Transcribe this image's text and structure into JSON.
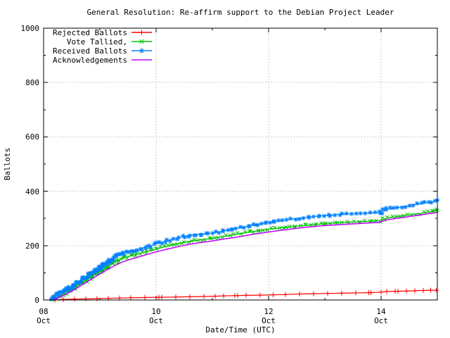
{
  "title": "General Resolution: Re-affirm support to the Debian Project Leader",
  "colors": {
    "background": "#ffffff",
    "axis": "#000000",
    "grid": "#a0a0a0",
    "rejected": "#ff0000",
    "tallied": "#00c000",
    "received": "#0080ff",
    "acknowledgements": "#c000ff"
  },
  "chart_data": {
    "type": "line",
    "title": "General Resolution: Re-affirm support to the Debian Project Leader",
    "xlabel": "Date/Time (UTC)",
    "ylabel": "Ballots",
    "ylim": [
      0,
      1000
    ],
    "x_unit": "days since 08 Oct 00:00 UTC",
    "xlim": [
      0,
      7
    ],
    "grid": true,
    "legend_position": "top-left-inside",
    "x_ticks": [
      {
        "pos": 0,
        "day": "08",
        "month": "Oct"
      },
      {
        "pos": 2,
        "day": "10",
        "month": "Oct"
      },
      {
        "pos": 4,
        "day": "12",
        "month": "Oct"
      },
      {
        "pos": 6,
        "day": "14",
        "month": "Oct"
      }
    ],
    "x_minor_ticks": [
      1,
      3,
      5,
      7
    ],
    "y_ticks": [
      {
        "value": 0,
        "label": "0"
      },
      {
        "value": 200,
        "label": "200"
      },
      {
        "value": 400,
        "label": "400"
      },
      {
        "value": 600,
        "label": "600"
      },
      {
        "value": 800,
        "label": "800"
      },
      {
        "value": 1000,
        "label": "1000"
      }
    ],
    "y_minor_ticks": [
      100,
      300,
      500,
      700,
      900
    ],
    "series": [
      {
        "name": "Rejected Ballots",
        "color": "#ff0000",
        "marker": "plus",
        "style": "linespoints",
        "final_value": 36,
        "points": [
          [
            0.2,
            0
          ],
          [
            0.35,
            2
          ],
          [
            0.55,
            3
          ],
          [
            0.75,
            4
          ],
          [
            0.95,
            5
          ],
          [
            1.15,
            6
          ],
          [
            1.35,
            7
          ],
          [
            1.55,
            8
          ],
          [
            1.8,
            9
          ],
          [
            2.05,
            10
          ],
          [
            2.1,
            10
          ],
          [
            2.35,
            11
          ],
          [
            2.6,
            12
          ],
          [
            2.85,
            13
          ],
          [
            3.05,
            14
          ],
          [
            3.2,
            15
          ],
          [
            3.4,
            16
          ],
          [
            3.45,
            16
          ],
          [
            3.6,
            17
          ],
          [
            3.85,
            18
          ],
          [
            4.08,
            19
          ],
          [
            4.3,
            20
          ],
          [
            4.55,
            22
          ],
          [
            4.8,
            23
          ],
          [
            5.05,
            24
          ],
          [
            5.3,
            25
          ],
          [
            5.55,
            26
          ],
          [
            5.78,
            27
          ],
          [
            5.82,
            27
          ],
          [
            6.0,
            29
          ],
          [
            6.1,
            31
          ],
          [
            6.25,
            32
          ],
          [
            6.3,
            32
          ],
          [
            6.45,
            33
          ],
          [
            6.6,
            34
          ],
          [
            6.75,
            35
          ],
          [
            6.88,
            36
          ],
          [
            6.98,
            36
          ]
        ]
      },
      {
        "name": "Vote Tallied,",
        "color": "#00c000",
        "marker": "cross",
        "style": "linespoints",
        "final_value": 330,
        "points": [
          [
            0.15,
            0
          ],
          [
            0.18,
            4
          ],
          [
            0.22,
            9
          ],
          [
            0.26,
            14
          ],
          [
            0.31,
            19
          ],
          [
            0.36,
            24
          ],
          [
            0.41,
            29
          ],
          [
            0.46,
            35
          ],
          [
            0.52,
            42
          ],
          [
            0.58,
            50
          ],
          [
            0.64,
            58
          ],
          [
            0.7,
            66
          ],
          [
            0.77,
            75
          ],
          [
            0.84,
            84
          ],
          [
            0.91,
            93
          ],
          [
            0.98,
            102
          ],
          [
            1.05,
            112
          ],
          [
            1.12,
            121
          ],
          [
            1.19,
            130
          ],
          [
            1.26,
            139
          ],
          [
            1.33,
            147
          ],
          [
            1.41,
            153
          ],
          [
            1.49,
            159
          ],
          [
            1.57,
            164
          ],
          [
            1.66,
            169
          ],
          [
            1.75,
            174
          ],
          [
            1.84,
            178
          ],
          [
            1.93,
            183
          ],
          [
            2.02,
            188
          ],
          [
            2.14,
            195
          ],
          [
            2.26,
            201
          ],
          [
            2.38,
            207
          ],
          [
            2.5,
            212
          ],
          [
            2.62,
            216
          ],
          [
            2.74,
            220
          ],
          [
            2.86,
            223
          ],
          [
            2.98,
            226
          ],
          [
            3.1,
            230
          ],
          [
            3.24,
            235
          ],
          [
            3.38,
            240
          ],
          [
            3.52,
            245
          ],
          [
            3.67,
            250
          ],
          [
            3.82,
            255
          ],
          [
            3.97,
            259
          ],
          [
            4.12,
            263
          ],
          [
            4.3,
            267
          ],
          [
            4.48,
            271
          ],
          [
            4.66,
            275
          ],
          [
            4.84,
            278
          ],
          [
            5.02,
            281
          ],
          [
            5.22,
            284
          ],
          [
            5.42,
            286
          ],
          [
            5.62,
            288
          ],
          [
            5.82,
            290
          ],
          [
            5.98,
            292
          ],
          [
            6.06,
            299
          ],
          [
            6.12,
            302
          ],
          [
            6.26,
            306
          ],
          [
            6.4,
            310
          ],
          [
            6.54,
            314
          ],
          [
            6.68,
            318
          ],
          [
            6.82,
            323
          ],
          [
            6.92,
            326
          ],
          [
            7.0,
            330
          ]
        ]
      },
      {
        "name": "Received Ballots",
        "color": "#0080ff",
        "marker": "asterisk",
        "style": "linespoints",
        "final_value": 367,
        "points": [
          [
            0.14,
            0
          ],
          [
            0.16,
            5
          ],
          [
            0.18,
            10
          ],
          [
            0.21,
            15
          ],
          [
            0.24,
            20
          ],
          [
            0.28,
            25
          ],
          [
            0.32,
            30
          ],
          [
            0.36,
            34
          ],
          [
            0.4,
            38
          ],
          [
            0.45,
            43
          ],
          [
            0.5,
            49
          ],
          [
            0.55,
            56
          ],
          [
            0.6,
            64
          ],
          [
            0.65,
            72
          ],
          [
            0.7,
            79
          ],
          [
            0.76,
            87
          ],
          [
            0.82,
            95
          ],
          [
            0.88,
            103
          ],
          [
            0.94,
            111
          ],
          [
            1.0,
            119
          ],
          [
            1.06,
            128
          ],
          [
            1.12,
            137
          ],
          [
            1.18,
            146
          ],
          [
            1.24,
            154
          ],
          [
            1.3,
            161
          ],
          [
            1.36,
            166
          ],
          [
            1.43,
            171
          ],
          [
            1.5,
            176
          ],
          [
            1.58,
            181
          ],
          [
            1.66,
            186
          ],
          [
            1.74,
            190
          ],
          [
            1.82,
            194
          ],
          [
            1.91,
            199
          ],
          [
            2.0,
            206
          ],
          [
            2.1,
            212
          ],
          [
            2.2,
            218
          ],
          [
            2.3,
            224
          ],
          [
            2.4,
            229
          ],
          [
            2.5,
            233
          ],
          [
            2.6,
            237
          ],
          [
            2.7,
            240
          ],
          [
            2.8,
            242
          ],
          [
            2.92,
            244
          ],
          [
            3.05,
            248
          ],
          [
            3.2,
            254
          ],
          [
            3.35,
            260
          ],
          [
            3.5,
            266
          ],
          [
            3.65,
            272
          ],
          [
            3.8,
            278
          ],
          [
            3.95,
            284
          ],
          [
            4.1,
            289
          ],
          [
            4.25,
            293
          ],
          [
            4.4,
            297
          ],
          [
            4.55,
            301
          ],
          [
            4.72,
            305
          ],
          [
            4.9,
            309
          ],
          [
            5.1,
            312
          ],
          [
            5.3,
            315
          ],
          [
            5.55,
            318
          ],
          [
            5.8,
            320
          ],
          [
            5.98,
            322
          ],
          [
            6.04,
            328
          ],
          [
            6.1,
            333
          ],
          [
            6.22,
            337
          ],
          [
            6.36,
            342
          ],
          [
            6.5,
            347
          ],
          [
            6.64,
            352
          ],
          [
            6.78,
            357
          ],
          [
            6.9,
            362
          ],
          [
            7.0,
            367
          ]
        ]
      },
      {
        "name": "Acknowledgements",
        "color": "#c000ff",
        "marker": "none",
        "style": "lines",
        "final_value": 322,
        "points": [
          [
            0.16,
            0
          ],
          [
            0.22,
            5
          ],
          [
            0.3,
            12
          ],
          [
            0.38,
            20
          ],
          [
            0.46,
            28
          ],
          [
            0.54,
            37
          ],
          [
            0.62,
            47
          ],
          [
            0.7,
            58
          ],
          [
            0.78,
            68
          ],
          [
            0.86,
            78
          ],
          [
            0.94,
            88
          ],
          [
            1.02,
            98
          ],
          [
            1.1,
            108
          ],
          [
            1.18,
            117
          ],
          [
            1.26,
            126
          ],
          [
            1.34,
            134
          ],
          [
            1.42,
            141
          ],
          [
            1.5,
            147
          ],
          [
            1.6,
            153
          ],
          [
            1.7,
            159
          ],
          [
            1.8,
            165
          ],
          [
            1.9,
            171
          ],
          [
            2.0,
            177
          ],
          [
            2.15,
            185
          ],
          [
            2.3,
            192
          ],
          [
            2.45,
            199
          ],
          [
            2.6,
            205
          ],
          [
            2.75,
            210
          ],
          [
            2.9,
            214
          ],
          [
            3.05,
            219
          ],
          [
            3.2,
            224
          ],
          [
            3.4,
            230
          ],
          [
            3.6,
            237
          ],
          [
            3.8,
            244
          ],
          [
            4.0,
            250
          ],
          [
            4.2,
            256
          ],
          [
            4.4,
            261
          ],
          [
            4.6,
            266
          ],
          [
            4.8,
            270
          ],
          [
            5.0,
            274
          ],
          [
            5.25,
            277
          ],
          [
            5.5,
            280
          ],
          [
            5.75,
            283
          ],
          [
            5.95,
            285
          ],
          [
            6.08,
            294
          ],
          [
            6.2,
            298
          ],
          [
            6.4,
            304
          ],
          [
            6.6,
            310
          ],
          [
            6.8,
            316
          ],
          [
            7.0,
            322
          ]
        ]
      }
    ]
  }
}
